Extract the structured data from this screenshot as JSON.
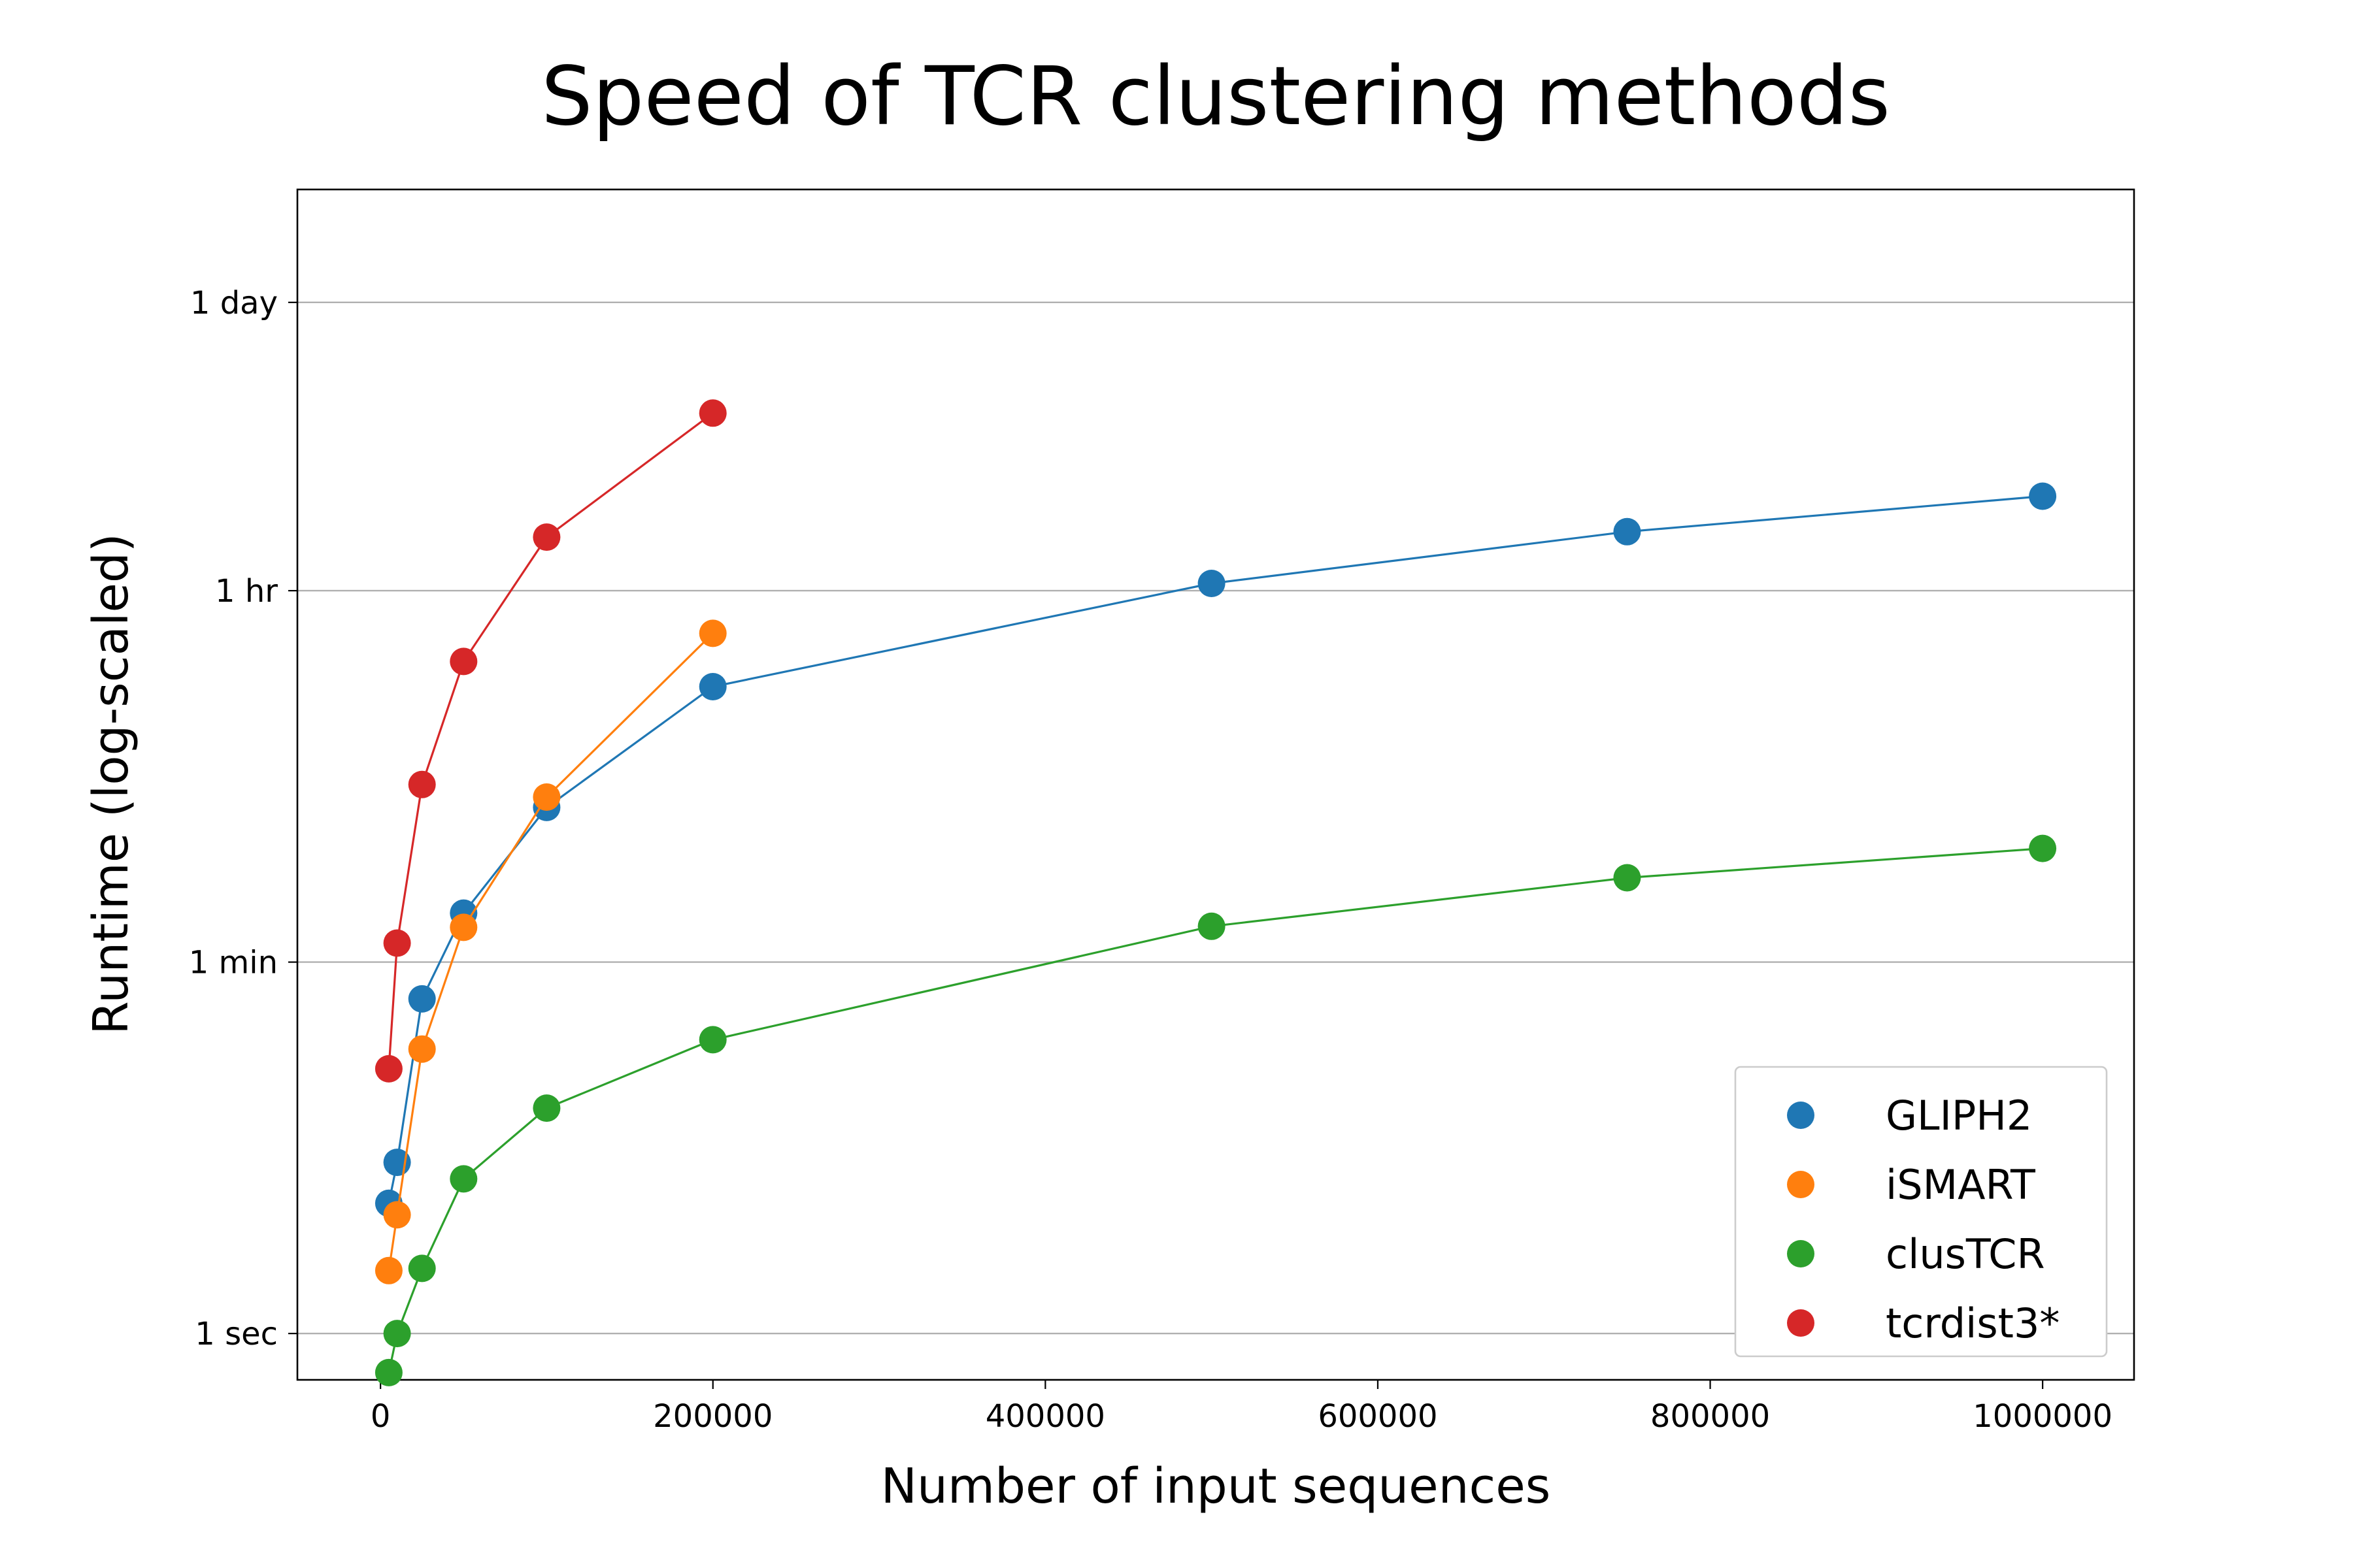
{
  "chart_data": {
    "type": "line",
    "title": "Speed of TCR clustering methods",
    "xlabel": "Number of input sequences",
    "ylabel": "Runtime (log-scaled)",
    "x_scale": "linear",
    "y_scale": "log",
    "y_unit": "seconds",
    "xlim": [
      -50000,
      1055000
    ],
    "ylim": [
      0.6,
      300000
    ],
    "x_ticks": [
      {
        "value": 0,
        "label": "0"
      },
      {
        "value": 200000,
        "label": "200000"
      },
      {
        "value": 400000,
        "label": "400000"
      },
      {
        "value": 600000,
        "label": "600000"
      },
      {
        "value": 800000,
        "label": "800000"
      },
      {
        "value": 1000000,
        "label": "1000000"
      }
    ],
    "y_ticks": [
      {
        "value": 1,
        "label": "1 sec"
      },
      {
        "value": 60,
        "label": "1 min"
      },
      {
        "value": 3600,
        "label": "1 hr"
      },
      {
        "value": 86400,
        "label": "1 day"
      }
    ],
    "grid": "y-major",
    "legend_position": "bottom-right",
    "series": [
      {
        "name": "GLIPH2",
        "color": "#1f77b4",
        "x": [
          5000,
          10000,
          25000,
          50000,
          100000,
          200000,
          500000,
          750000,
          1000000
        ],
        "y": [
          4.2,
          6.6,
          40,
          103,
          330,
          1250,
          3900,
          6900,
          10200
        ]
      },
      {
        "name": "iSMART",
        "color": "#ff7f0e",
        "x": [
          5000,
          10000,
          25000,
          50000,
          100000,
          200000
        ],
        "y": [
          2.0,
          3.7,
          23,
          88,
          370,
          2250
        ]
      },
      {
        "name": "clusTCR",
        "color": "#2ca02c",
        "x": [
          5000,
          10000,
          25000,
          50000,
          100000,
          200000,
          500000,
          750000,
          1000000
        ],
        "y": [
          0.65,
          1.0,
          2.05,
          5.5,
          12,
          25.5,
          89,
          152,
          210
        ]
      },
      {
        "name": "tcrdist3*",
        "color": "#d62728",
        "x": [
          5000,
          10000,
          25000,
          50000,
          100000,
          200000
        ],
        "y": [
          18.5,
          74,
          425,
          1650,
          6500,
          25500
        ]
      }
    ]
  }
}
